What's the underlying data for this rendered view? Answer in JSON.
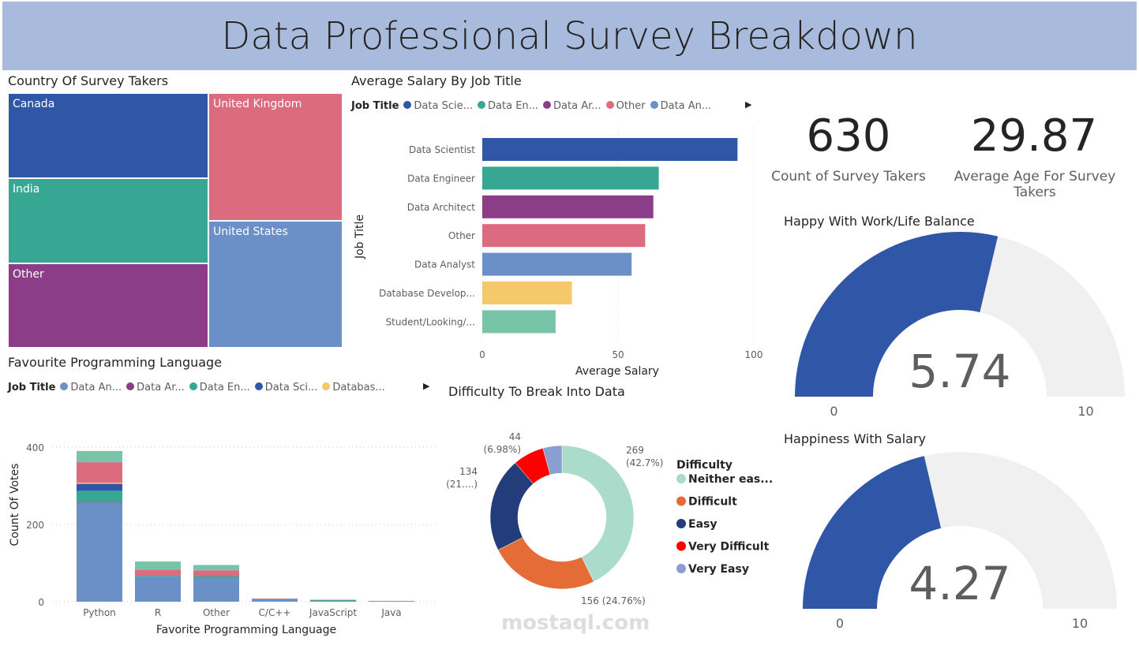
{
  "header": {
    "title": "Data Professional Survey Breakdown"
  },
  "treemap": {
    "title": "Country Of Survey Takers",
    "items": [
      {
        "label": "Canada",
        "color": "#3056A7"
      },
      {
        "label": "India",
        "color": "#37A794"
      },
      {
        "label": "Other",
        "color": "#8B3D88"
      },
      {
        "label": "United Kingdom",
        "color": "#DD6B7F"
      },
      {
        "label": "United States",
        "color": "#6B8FC7"
      }
    ]
  },
  "kpis": [
    {
      "value": "630",
      "label": "Count of Survey Takers"
    },
    {
      "value": "29.87",
      "label": "Average Age For Survey Takers"
    }
  ],
  "colors": {
    "Data Analyst": "#6B8FC7",
    "Data Architect": "#8B3D88",
    "Data Engineer": "#37A794",
    "Data Scientist": "#3056A7",
    "Database Developer": "#F5C869",
    "Other": "#DD6B7F",
    "Student/Looking/None": "#77C4A8"
  },
  "chart_data": [
    {
      "type": "bar",
      "orientation": "horizontal",
      "title": "Average Salary By Job Title",
      "legend_title": "Job Title",
      "legend": [
        "Data Scie...",
        "Data En...",
        "Data Ar...",
        "Other",
        "Data An..."
      ],
      "categories": [
        "Data Scientist",
        "Data Engineer",
        "Data Architect",
        "Other",
        "Data Analyst",
        "Database Develop...",
        "Student/Looking/..."
      ],
      "values": [
        94,
        65,
        63,
        60,
        55,
        33,
        27
      ],
      "xlabel": "Average Salary",
      "ylabel": "Job Title",
      "xlim": [
        0,
        100
      ],
      "xticks": [
        "0",
        "50",
        "100"
      ]
    },
    {
      "type": "bar",
      "stacked": true,
      "title": "Favourite Programming Language",
      "legend_title": "Job Title",
      "legend": [
        "Data An...",
        "Data Ar...",
        "Data En...",
        "Data Sci...",
        "Databas..."
      ],
      "categories": [
        "Python",
        "R",
        "Other",
        "C/C++",
        "JavaScript",
        "Java"
      ],
      "series": [
        {
          "key": "Data Analyst",
          "values": [
            256,
            64,
            60,
            7,
            2,
            0
          ]
        },
        {
          "key": "Data Architect",
          "values": [
            1,
            0,
            0,
            0,
            0,
            0
          ]
        },
        {
          "key": "Data Engineer",
          "values": [
            30,
            2,
            5,
            0,
            2,
            0
          ]
        },
        {
          "key": "Data Scientist",
          "values": [
            18,
            1,
            1,
            0,
            0,
            0
          ]
        },
        {
          "key": "Database Developer",
          "values": [
            3,
            0,
            0,
            0,
            0,
            0
          ]
        },
        {
          "key": "Other",
          "values": [
            53,
            16,
            15,
            1,
            1,
            2
          ]
        },
        {
          "key": "Student/Looking/None",
          "values": [
            29,
            21,
            14,
            0,
            0,
            0
          ]
        }
      ],
      "xlabel": "Favorite Programming Language",
      "ylabel": "Count Of Votes",
      "ylim": [
        0,
        420
      ],
      "yticks": [
        "0",
        "200",
        "400"
      ],
      "grid": true
    },
    {
      "type": "pie",
      "donut": true,
      "title": "Difficulty To Break Into Data",
      "legend_title": "Difficulty",
      "slices": [
        {
          "label": "Neither eas...",
          "value": 269,
          "color": "#ABDBCB",
          "dl": [
            "269",
            "(42.7%)"
          ]
        },
        {
          "label": "Difficult",
          "value": 156,
          "color": "#E66C37",
          "dl": [
            "156 (24.76%)"
          ]
        },
        {
          "label": "Easy",
          "value": 134,
          "color": "#233D7A",
          "dl": [
            "134",
            "(21....)"
          ]
        },
        {
          "label": "Very Difficult",
          "value": 44,
          "color": "#FF0000",
          "dl": [
            "44",
            "(6.98%)"
          ]
        },
        {
          "label": "Very Easy",
          "value": 27,
          "color": "#8A9ED0",
          "dl": []
        }
      ]
    },
    {
      "type": "gauge",
      "title": "Happy With Work/Life Balance",
      "value": 5.74,
      "min": 0,
      "max": 10,
      "value_label": "5.74",
      "min_label": "0",
      "max_label": "10"
    },
    {
      "type": "gauge",
      "title": "Happiness With Salary",
      "value": 4.27,
      "min": 0,
      "max": 10,
      "value_label": "4.27",
      "min_label": "0",
      "max_label": "10"
    }
  ],
  "watermark": "mostaql.com"
}
